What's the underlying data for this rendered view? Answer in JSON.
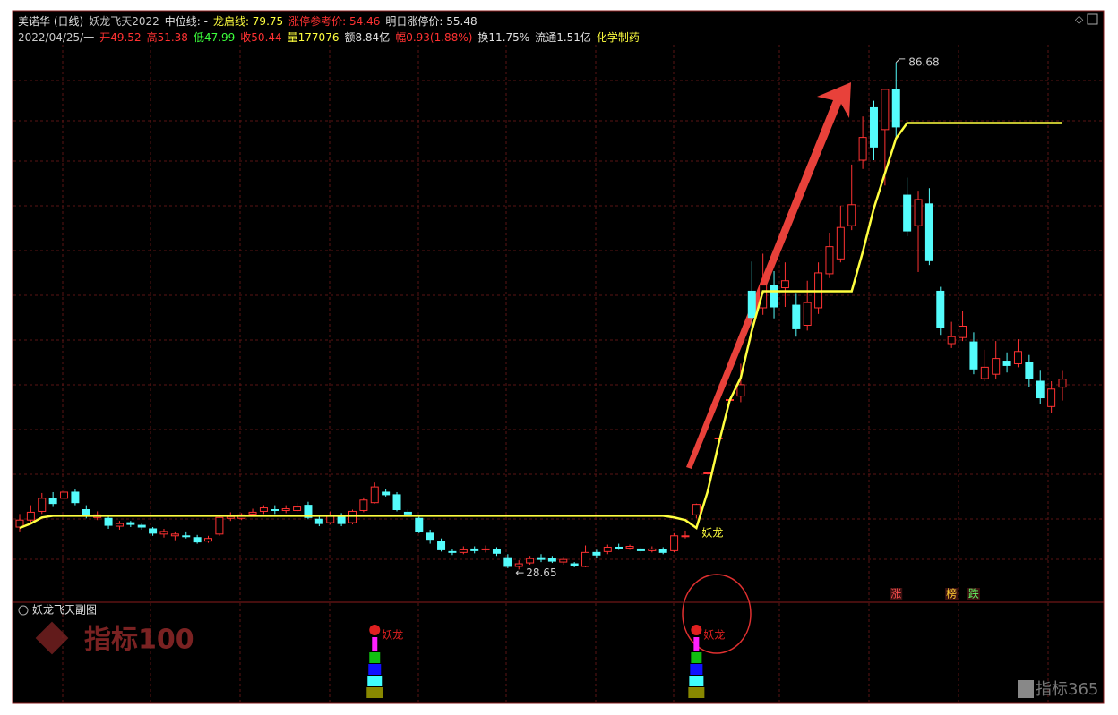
{
  "header": {
    "row1": [
      {
        "text": "美诺华 (日线)",
        "color": "#e0e0e0"
      },
      {
        "text": "妖龙飞天2022",
        "color": "#c8c8c8"
      },
      {
        "text": "中位线: -",
        "color": "#e0e0e0"
      },
      {
        "text": "龙启线: 79.75",
        "color": "#ffff3f"
      },
      {
        "text": "涨停参考价: 54.46",
        "color": "#ff3232"
      },
      {
        "text": "明日涨停价: 55.48",
        "color": "#e0e0e0"
      }
    ],
    "row2": [
      {
        "text": "2022/04/25/一",
        "color": "#c8c8c8"
      },
      {
        "text": "开49.52",
        "color": "#ff3232"
      },
      {
        "text": "高51.38",
        "color": "#ff3232"
      },
      {
        "text": "低47.99",
        "color": "#3cff3c"
      },
      {
        "text": "收50.44",
        "color": "#ff3232"
      },
      {
        "text": "量177076",
        "color": "#ffff3f"
      },
      {
        "text": "额8.84亿",
        "color": "#e0e0e0"
      },
      {
        "text": "幅0.93(1.88%)",
        "color": "#ff3232"
      },
      {
        "text": "换11.75%",
        "color": "#e0e0e0"
      },
      {
        "text": "流通1.51亿",
        "color": "#e0e0e0"
      },
      {
        "text": "化学制药",
        "color": "#ffff3f"
      }
    ]
  },
  "subchart_title": "妖龙飞天副图",
  "watermarks": [
    "指标100",
    "指标365"
  ],
  "chart_data": {
    "type": "candlestick",
    "ylim": [
      25,
      92.3
    ],
    "up_color": "#ff3232",
    "down_color": "#54fcfc",
    "open": [
      33.5,
      34.3,
      35.3,
      36.8,
      36.8,
      37.5,
      35.5,
      34.6,
      34.5,
      33.6,
      34.0,
      33.7,
      33.3,
      32.7,
      32.5,
      32.5,
      32.3,
      31.9,
      32.7,
      34.5,
      34.5,
      35.0,
      35.3,
      35.5,
      35.4,
      35.4,
      36.0,
      34.4,
      34.0,
      34.8,
      34.0,
      35.4,
      36.3,
      37.5,
      37.2,
      35.2,
      34.5,
      32.8,
      31.9,
      30.7,
      30.6,
      31.0,
      30.9,
      30.9,
      30.0,
      29.0,
      29.4,
      30.0,
      29.9,
      29.5,
      29.3,
      29.0,
      30.6,
      30.7,
      31.2,
      31.1,
      31.0,
      30.8,
      30.9,
      30.8,
      32.4,
      34.9,
      39.7,
      43.7,
      48.1,
      48.5,
      60.5,
      58.6,
      61.2,
      60.9,
      58.9,
      56.6,
      58.6,
      62.5,
      64.2,
      68,
      75.5,
      81.5,
      79,
      83.6,
      71.5,
      68,
      70.5,
      60.5,
      54.5,
      55.2,
      54.7,
      50.5,
      51,
      52.5,
      52.2,
      52.3,
      50.2,
      47.3,
      49.52
    ],
    "high": [
      35,
      36,
      37.4,
      37.5,
      38,
      37.8,
      36,
      35.3,
      34.8,
      34.2,
      34.2,
      33.9,
      33.5,
      33.3,
      33,
      33,
      32.6,
      32.5,
      34.8,
      35.2,
      35.1,
      35.6,
      36,
      36,
      36,
      36.3,
      36.4,
      34.8,
      35.3,
      35.1,
      35.5,
      36.9,
      38.6,
      37.9,
      37.5,
      35.5,
      34.8,
      33.2,
      32.2,
      31,
      31.3,
      31.3,
      31.4,
      31.2,
      30.4,
      29.7,
      30.2,
      30.4,
      30.2,
      30.1,
      29.5,
      31.4,
      30.9,
      31.5,
      31.6,
      31.5,
      31.2,
      31.3,
      31.2,
      32.8,
      33.1,
      36.2,
      39.7,
      43.7,
      48.1,
      52.2,
      63.9,
      64.8,
      62.8,
      63.8,
      60.3,
      61.7,
      63.8,
      67.2,
      70.3,
      75,
      80.5,
      82.3,
      83.6,
      86.68,
      73.5,
      72,
      72.3,
      61,
      57,
      58.2,
      55.8,
      53.8,
      54.8,
      53.5,
      55,
      53.2,
      51.4,
      50.2,
      51.38
    ],
    "low": [
      33,
      34,
      35,
      35.8,
      36.5,
      36,
      34.5,
      34.3,
      33.3,
      33.2,
      33.5,
      33.2,
      32.5,
      32.3,
      32,
      32.2,
      31.6,
      31.7,
      32.5,
      34.2,
      34.3,
      34.7,
      35,
      35,
      35.1,
      35.2,
      34.4,
      33.6,
      33.8,
      33.6,
      33.8,
      35.2,
      36.2,
      37,
      35.3,
      34.7,
      32.8,
      31.6,
      30.7,
      30.3,
      30.4,
      30.5,
      30.6,
      30.2,
      28.8,
      28.65,
      29.2,
      29.5,
      29.4,
      29.2,
      28.9,
      28.9,
      30.0,
      30.4,
      30.9,
      30.9,
      30.5,
      30.6,
      30.4,
      30.6,
      32.2,
      34.5,
      39.7,
      43.7,
      48.1,
      47.8,
      55.8,
      57.8,
      57.4,
      58.7,
      55.3,
      56,
      57.9,
      62,
      63.8,
      67.5,
      74.5,
      75.5,
      72.6,
      78,
      66.8,
      62.7,
      63.5,
      55.5,
      54,
      54.8,
      51,
      50.2,
      50.4,
      51.2,
      51.8,
      49.5,
      47.6,
      46.6,
      47.99
    ],
    "close": [
      34.3,
      35.2,
      36.8,
      36.2,
      37.5,
      36.3,
      34.8,
      34.9,
      33.7,
      33.9,
      33.8,
      33.5,
      32.8,
      33.0,
      32.7,
      32.4,
      31.8,
      32.2,
      34.6,
      34.7,
      34.9,
      35.2,
      35.7,
      35.4,
      35.6,
      35.8,
      34.6,
      33.9,
      34.8,
      33.9,
      35.3,
      36.6,
      38.1,
      37.2,
      35.5,
      35.0,
      33.0,
      32.1,
      30.9,
      30.6,
      30.9,
      30.8,
      31.0,
      30.5,
      29.0,
      29.3,
      29.9,
      29.8,
      29.6,
      29.8,
      29.1,
      30.6,
      30.3,
      31.2,
      31.1,
      31.3,
      30.8,
      31.0,
      30.6,
      32.5,
      32.5,
      36.1,
      39.7,
      43.7,
      48.1,
      49.8,
      57.5,
      61.2,
      58.7,
      61.7,
      56.2,
      59.2,
      62.6,
      65.6,
      67.8,
      70.4,
      78.1,
      77,
      83.6,
      79.3,
      67.4,
      71,
      64,
      56.3,
      55.3,
      56.5,
      51.6,
      51.8,
      52.8,
      52,
      53.6,
      50.5,
      48.3,
      49.3,
      50.44
    ],
    "line": {
      "name": "龙启线",
      "color": "#ffff3f",
      "values": [
        33.4,
        33.9,
        34.6,
        34.8,
        34.8,
        34.8,
        34.8,
        34.8,
        34.8,
        34.8,
        34.8,
        34.8,
        34.8,
        34.8,
        34.8,
        34.8,
        34.8,
        34.8,
        34.8,
        34.8,
        34.8,
        34.8,
        34.8,
        34.8,
        34.8,
        34.8,
        34.8,
        34.8,
        34.8,
        34.8,
        34.8,
        34.8,
        34.8,
        34.8,
        34.8,
        34.8,
        34.8,
        34.8,
        34.8,
        34.8,
        34.8,
        34.8,
        34.8,
        34.8,
        34.8,
        34.8,
        34.8,
        34.8,
        34.8,
        34.8,
        34.8,
        34.8,
        34.8,
        34.8,
        34.8,
        34.8,
        34.8,
        34.8,
        34.8,
        34.6,
        34.3,
        33.4,
        37.5,
        43,
        48,
        50.6,
        56,
        60.5,
        60.5,
        60.5,
        60.5,
        60.5,
        60.5,
        60.5,
        60.5,
        60.5,
        65,
        70,
        74,
        78,
        79.75,
        79.75,
        79.75,
        79.75,
        79.75,
        79.75,
        79.75,
        79.75,
        79.75,
        79.75,
        79.75,
        79.75,
        79.75,
        79.75,
        79.75
      ]
    },
    "signals": [
      {
        "index": 32,
        "label": "妖龙"
      },
      {
        "index": 61,
        "label": "妖龙"
      }
    ],
    "markers": [
      {
        "index": 79,
        "label": "涨"
      },
      {
        "index": 84,
        "label": "榜"
      },
      {
        "index": 86,
        "label": "跌"
      }
    ]
  }
}
